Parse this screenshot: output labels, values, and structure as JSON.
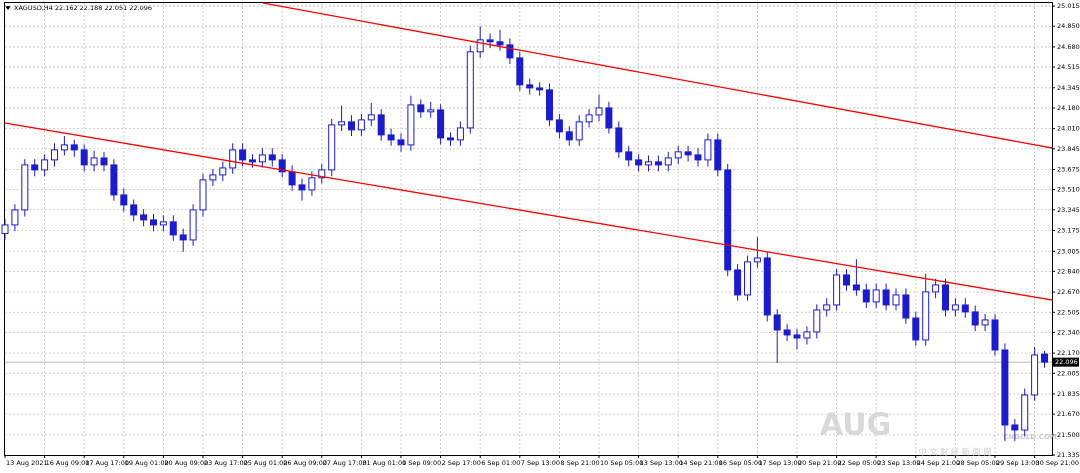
{
  "chart_data": {
    "type": "candlestick",
    "title": "XAGUSD,H4  22.162 22.188 22.051 22.096",
    "color": "#1c1ccc",
    "grid": true,
    "ylim": [
      21.335,
      25.04
    ],
    "xlim": [
      -0.5,
      106
    ],
    "yticks": [
      25.015,
      {
        "value": 24.85,
        "label": "24.850"
      },
      {
        "value": 24.68,
        "label": "24.680"
      },
      24.515,
      24.345,
      {
        "value": 24.18,
        "label": "24.180"
      },
      {
        "value": 24.01,
        "label": "24.010"
      },
      23.845,
      23.675,
      {
        "value": 23.51,
        "label": "23.510"
      },
      23.345,
      23.175,
      23.005,
      {
        "value": 22.84,
        "label": "22.840"
      },
      {
        "value": 22.67,
        "label": "22.670"
      },
      22.505,
      {
        "value": 22.34,
        "label": "22.340"
      },
      {
        "value": 22.17,
        "label": "22.170"
      },
      22.005,
      21.835,
      {
        "value": 21.67,
        "label": "21.670"
      },
      {
        "value": 21.5,
        "label": "21.500"
      },
      21.335
    ],
    "xticks": [
      {
        "value": 0,
        "label": "13 Aug 2021"
      },
      {
        "value": 4,
        "label": "16 Aug 09:00"
      },
      {
        "value": 8,
        "label": "17 Aug 17:00"
      },
      {
        "value": 12,
        "label": "19 Aug 01:00"
      },
      {
        "value": 16,
        "label": "20 Aug 09:00"
      },
      {
        "value": 20,
        "label": "23 Aug 17:00"
      },
      {
        "value": 24,
        "label": "25 Aug 01:00"
      },
      {
        "value": 28,
        "label": "26 Aug 09:00"
      },
      {
        "value": 32,
        "label": "27 Aug 17:00"
      },
      {
        "value": 36,
        "label": "31 Aug 01:00"
      },
      {
        "value": 40,
        "label": "1 Sep 09:00"
      },
      {
        "value": 44,
        "label": "2 Sep 17:00"
      },
      {
        "value": 48,
        "label": "6 Sep 01:00"
      },
      {
        "value": 52,
        "label": "7 Sep 13:00"
      },
      {
        "value": 56,
        "label": "8 Sep 21:00"
      },
      {
        "value": 60,
        "label": "10 Sep 05:00"
      },
      {
        "value": 64,
        "label": "13 Sep 13:00"
      },
      {
        "value": 68,
        "label": "14 Sep 21:00"
      },
      {
        "value": 72,
        "label": "16 Sep 05:00"
      },
      {
        "value": 76,
        "label": "17 Sep 13:00"
      },
      {
        "value": 80,
        "label": "20 Sep 21:00"
      },
      {
        "value": 84,
        "label": "22 Sep 05:00"
      },
      {
        "value": 88,
        "label": "23 Sep 13:00"
      },
      {
        "value": 92,
        "label": "24 Sep 21:00"
      },
      {
        "value": 96,
        "label": "28 Sep 05:00"
      },
      {
        "value": 100,
        "label": "29 Sep 13:00"
      },
      {
        "value": 104,
        "label": "30 Sep 21:00"
      }
    ],
    "open": [
      23.15,
      23.221,
      23.344,
      23.713,
      23.672,
      23.754,
      23.836,
      23.877,
      23.836,
      23.713,
      23.77,
      23.713,
      23.467,
      23.385,
      23.303,
      23.262,
      23.221,
      23.246,
      23.139,
      23.098,
      23.344,
      23.59,
      23.631,
      23.688,
      23.836,
      23.754,
      23.738,
      23.795,
      23.754,
      23.656,
      23.549,
      23.508,
      23.607,
      23.672,
      24.041,
      24.066,
      24.0,
      24.082,
      24.123,
      23.959,
      23.918,
      23.877,
      24.205,
      24.148,
      24.164,
      23.934,
      23.918,
      24.016,
      24.64,
      24.738,
      24.722,
      24.697,
      24.59,
      24.369,
      24.344,
      24.328,
      24.082,
      23.984,
      23.918,
      24.066,
      24.123,
      24.18,
      24.016,
      23.82,
      23.754,
      23.713,
      23.738,
      23.713,
      23.77,
      23.82,
      23.795,
      23.754,
      23.918,
      23.672,
      22.852,
      22.647,
      22.918,
      22.95,
      22.483,
      22.36,
      22.319,
      22.294,
      22.344,
      22.524,
      22.565,
      22.811,
      22.729,
      22.688,
      22.59,
      22.688,
      22.565,
      22.647,
      22.458,
      22.278,
      22.672,
      22.729,
      22.524,
      22.565,
      22.508,
      22.401,
      22.442,
      22.196,
      21.581,
      21.54,
      21.827,
      22.162
    ],
    "high": [
      23.27,
      23.39,
      23.76,
      23.76,
      23.8,
      23.89,
      23.95,
      23.92,
      23.88,
      23.83,
      23.82,
      23.76,
      23.52,
      23.43,
      23.35,
      23.31,
      23.3,
      23.3,
      23.19,
      23.39,
      23.64,
      23.68,
      23.74,
      23.89,
      23.89,
      23.8,
      23.85,
      23.85,
      23.8,
      23.71,
      23.6,
      23.66,
      23.72,
      24.09,
      24.2,
      24.12,
      24.13,
      24.22,
      24.17,
      24.01,
      23.97,
      24.28,
      24.25,
      24.23,
      24.21,
      23.98,
      24.07,
      24.69,
      24.85,
      24.79,
      24.82,
      24.75,
      24.64,
      24.42,
      24.39,
      24.38,
      24.13,
      24.03,
      24.12,
      24.17,
      24.29,
      24.23,
      24.07,
      23.87,
      23.8,
      23.79,
      23.79,
      23.82,
      23.87,
      23.87,
      23.85,
      23.97,
      23.97,
      23.72,
      22.9,
      22.97,
      23.12,
      23.0,
      22.53,
      22.41,
      22.37,
      22.39,
      22.57,
      22.62,
      22.86,
      22.86,
      22.94,
      22.74,
      22.74,
      22.74,
      22.7,
      22.7,
      22.51,
      22.82,
      22.78,
      22.78,
      22.62,
      22.62,
      22.56,
      22.49,
      22.49,
      22.25,
      21.63,
      21.88,
      22.22,
      22.188
    ],
    "low": [
      23.1,
      23.17,
      23.29,
      23.62,
      23.62,
      23.7,
      23.79,
      23.78,
      23.66,
      23.66,
      23.66,
      23.42,
      23.33,
      23.25,
      23.21,
      23.17,
      23.17,
      23.09,
      23.0,
      23.05,
      23.29,
      23.54,
      23.58,
      23.64,
      23.7,
      23.69,
      23.69,
      23.7,
      23.61,
      23.5,
      23.42,
      23.46,
      23.56,
      23.62,
      23.99,
      23.95,
      23.95,
      24.03,
      23.91,
      23.87,
      23.82,
      23.83,
      24.1,
      24.1,
      23.88,
      23.87,
      23.87,
      23.97,
      24.59,
      24.67,
      24.65,
      24.54,
      24.32,
      24.29,
      24.28,
      24.03,
      23.93,
      23.87,
      23.87,
      24.02,
      24.07,
      23.97,
      23.77,
      23.7,
      23.66,
      23.66,
      23.66,
      23.66,
      23.72,
      23.74,
      23.7,
      23.7,
      23.62,
      22.8,
      22.6,
      22.6,
      22.87,
      22.43,
      22.09,
      22.27,
      22.2,
      22.24,
      22.29,
      22.47,
      22.52,
      22.68,
      22.64,
      22.54,
      22.54,
      22.52,
      22.52,
      22.41,
      22.23,
      22.23,
      22.62,
      22.47,
      22.47,
      22.46,
      22.35,
      22.35,
      22.15,
      21.45,
      21.45,
      21.49,
      21.78,
      22.051
    ],
    "close": [
      23.221,
      23.344,
      23.713,
      23.672,
      23.754,
      23.836,
      23.877,
      23.836,
      23.713,
      23.77,
      23.713,
      23.467,
      23.385,
      23.303,
      23.262,
      23.221,
      23.246,
      23.139,
      23.098,
      23.344,
      23.59,
      23.631,
      23.688,
      23.836,
      23.754,
      23.738,
      23.795,
      23.754,
      23.656,
      23.549,
      23.508,
      23.607,
      23.672,
      24.041,
      24.066,
      24.0,
      24.082,
      24.123,
      23.959,
      23.918,
      23.877,
      24.205,
      24.148,
      24.164,
      23.934,
      23.918,
      24.016,
      24.64,
      24.738,
      24.722,
      24.697,
      24.59,
      24.369,
      24.344,
      24.328,
      24.082,
      23.984,
      23.918,
      24.066,
      24.123,
      24.18,
      24.016,
      23.82,
      23.754,
      23.713,
      23.738,
      23.713,
      23.77,
      23.82,
      23.795,
      23.754,
      23.918,
      23.672,
      22.852,
      22.647,
      22.918,
      22.95,
      22.483,
      22.36,
      22.319,
      22.294,
      22.344,
      22.524,
      22.565,
      22.811,
      22.729,
      22.688,
      22.59,
      22.688,
      22.565,
      22.647,
      22.458,
      22.278,
      22.672,
      22.729,
      22.524,
      22.565,
      22.508,
      22.401,
      22.442,
      22.196,
      21.581,
      21.54,
      21.827,
      22.155,
      22.096
    ],
    "current_price": 22.096,
    "trendlines": [
      {
        "color": "#ff0000",
        "x": [
          0,
          105.8
        ],
        "y": [
          24.056,
          22.605
        ]
      },
      {
        "color": "#ff0000",
        "x": [
          26.06,
          105.8
        ],
        "y": [
          25.04,
          23.851
        ]
      }
    ],
    "annotations": [
      "AUG",
      "中 文 财 经 新 闻 网",
      "CNGOLD.COM"
    ]
  }
}
